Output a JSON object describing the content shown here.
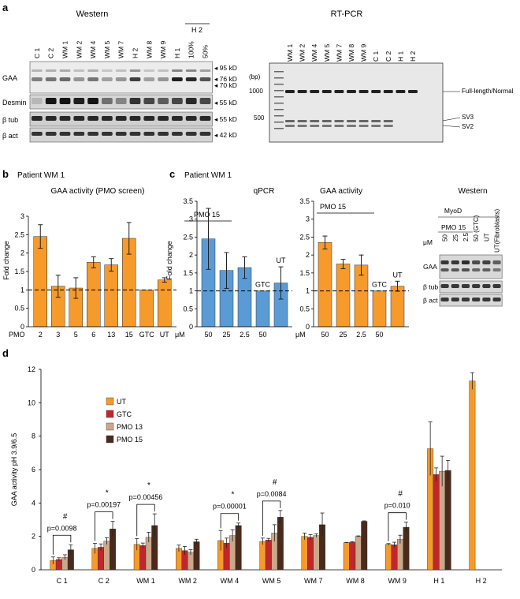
{
  "panel_a": {
    "letter": "a",
    "western": {
      "title": "Western",
      "lanes": [
        "C 1",
        "C 2",
        "WM 1",
        "WM 2",
        "WM 4",
        "WM 5",
        "WM 7",
        "H 2",
        "WM 8",
        "WM 9",
        "H 1",
        "100%",
        "50%"
      ],
      "h2_group_label": "H 2",
      "rows": [
        "GAA",
        "Desmin",
        "β tub",
        "β act"
      ],
      "markers": [
        "95 kD",
        "76 kD",
        "70 kD",
        "55 kD",
        "55 kD",
        "42 kD"
      ]
    },
    "rtpcr": {
      "title": "RT-PCR",
      "lanes": [
        "WM 1",
        "WM 2",
        "WM 4",
        "WM 5",
        "WM 7",
        "WM 8",
        "WM 9",
        "C 1",
        "C 2",
        "H 1",
        "H 2"
      ],
      "bp_label": "(bp)",
      "ladder_labels": [
        "1000",
        "500"
      ],
      "band_labels": [
        "Full-length/Normal",
        "SV3",
        "SV2"
      ]
    }
  },
  "panel_b": {
    "letter": "b",
    "patient": "Patient WM 1",
    "xaxis_prefix": "PMO",
    "bar_color": "#f59a2b",
    "chart_data": {
      "type": "bar",
      "title": "GAA activity  (PMO screen)",
      "ylabel": "Fold change",
      "categories": [
        "2",
        "3",
        "5",
        "6",
        "13",
        "15",
        "GTC",
        "UT"
      ],
      "values": [
        2.45,
        1.1,
        1.05,
        1.75,
        1.68,
        2.4,
        1.0,
        1.27
      ],
      "errors": [
        0.32,
        0.3,
        0.28,
        0.15,
        0.17,
        0.43,
        0.0,
        0.06
      ],
      "ylim": [
        0,
        3
      ],
      "yticks": [
        "0",
        "0.5",
        "1",
        "1.5",
        "2",
        "2.5",
        "3"
      ],
      "reference_line": 1
    }
  },
  "panel_c": {
    "letter": "c",
    "patient": "Patient WM 1",
    "um_label": "μM",
    "qpcr": {
      "pmo_label": "PMO 15",
      "bar_color": "#5b9bd5",
      "chart_data": {
        "type": "bar",
        "title": "qPCR",
        "ylabel": "Fold change",
        "categories": [
          "50",
          "25",
          "2.5",
          "50",
          ""
        ],
        "bar_labels": [
          "",
          "",
          "",
          "GTC",
          "UT"
        ],
        "values": [
          2.45,
          1.57,
          1.65,
          1.0,
          1.22
        ],
        "errors": [
          0.85,
          0.5,
          0.3,
          0.0,
          0.45
        ],
        "ylim": [
          0,
          3.5
        ],
        "yticks": [
          "0",
          "0.5",
          "1",
          "1.5",
          "2",
          "2.5",
          "3",
          "3.5"
        ],
        "reference_line": 1
      }
    },
    "gaa": {
      "pmo_label": "PMO 15",
      "bar_color": "#f59a2b",
      "chart_data": {
        "type": "bar",
        "title": "GAA activity",
        "categories": [
          "50",
          "25",
          "2.5",
          "50",
          ""
        ],
        "bar_labels": [
          "",
          "",
          "",
          "GTC",
          "UT"
        ],
        "values": [
          2.35,
          1.75,
          1.72,
          1.0,
          1.13
        ],
        "errors": [
          0.18,
          0.13,
          0.28,
          0.0,
          0.14
        ],
        "ylim": [
          0,
          3.5
        ],
        "yticks": [
          "0",
          "0.5",
          "1",
          "1.5",
          "2",
          "2.5",
          "3",
          "3.5"
        ],
        "reference_line": 1
      }
    },
    "western": {
      "title": "Western",
      "myod": "MyoD",
      "pmo_label": "PMO 15",
      "lanes": [
        "50",
        "25",
        "2.5",
        "50 (GTC)",
        "UT",
        "UT(Fibroblasts)"
      ],
      "rows": [
        "GAA",
        "β tub",
        "β act"
      ]
    }
  },
  "panel_d": {
    "letter": "d",
    "chart_data": {
      "type": "bar",
      "ylabel": "GAA activity pH 3.9/6.5",
      "categories": [
        "C 1",
        "C 2",
        "WM 1",
        "WM 2",
        "WM 4",
        "WM 5",
        "WM 7",
        "WM 8",
        "WM 9",
        "H 1",
        "H 2"
      ],
      "ylim": [
        0,
        12
      ],
      "yticks": [
        "0",
        "2",
        "4",
        "6",
        "8",
        "10",
        "12"
      ],
      "series": [
        {
          "name": "UT",
          "color": "#f59a2b",
          "values": [
            0.55,
            1.28,
            1.52,
            1.28,
            1.75,
            1.7,
            2.0,
            1.62,
            1.52,
            7.25,
            11.3
          ],
          "errors": [
            0.22,
            0.3,
            0.35,
            0.2,
            0.6,
            0.2,
            0.2,
            0.02,
            0.05,
            1.6,
            0.5
          ]
        },
        {
          "name": "GTC",
          "color": "#c0272d",
          "values": [
            0.62,
            1.35,
            1.45,
            1.15,
            1.6,
            1.78,
            1.95,
            1.65,
            1.5,
            5.7,
            null
          ],
          "errors": [
            0.1,
            0.2,
            0.15,
            0.25,
            0.3,
            0.1,
            0.15,
            0.03,
            0.15,
            0.4,
            null
          ]
        },
        {
          "name": "PMO 13",
          "color": "#c9a98a",
          "values": [
            0.75,
            1.72,
            1.95,
            1.05,
            2.05,
            2.2,
            2.05,
            2.0,
            1.82,
            5.9,
            null
          ],
          "errors": [
            0.15,
            0.2,
            0.3,
            0.15,
            0.35,
            0.5,
            0.1,
            0.03,
            0.25,
            0.9,
            null
          ]
        },
        {
          "name": "PMO 15",
          "color": "#4a2a1c",
          "values": [
            1.2,
            2.45,
            2.65,
            1.68,
            2.65,
            3.15,
            2.7,
            2.9,
            2.55,
            5.95,
            null
          ],
          "errors": [
            0.3,
            0.45,
            0.7,
            0.15,
            0.15,
            0.4,
            0.7,
            0.03,
            0.3,
            0.6,
            null
          ]
        }
      ],
      "annotations": [
        {
          "group": "C 1",
          "p": "p=0.0098",
          "mark": "#"
        },
        {
          "group": "C 2",
          "p": "p=0.00197",
          "mark": "*"
        },
        {
          "group": "WM 1",
          "p": "p=0.00456",
          "mark": "*"
        },
        {
          "group": "WM 4",
          "p": "p=0.00001",
          "mark": "*"
        },
        {
          "group": "WM 5",
          "p": "p=0.0084",
          "mark": "#"
        },
        {
          "group": "WM 9",
          "p": "p=0.010",
          "mark": "#"
        }
      ]
    }
  }
}
